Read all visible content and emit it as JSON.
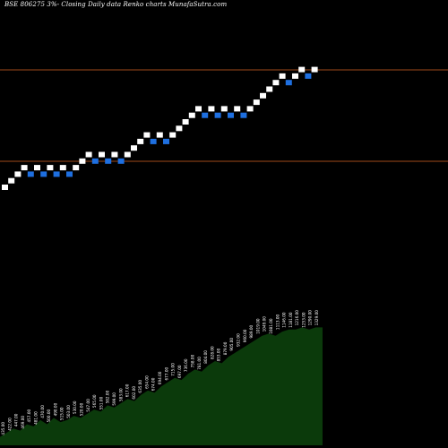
{
  "header": {
    "title": "BSE 806275 3%- Closing Daily data Renko charts MunafaSutra.com"
  },
  "colors": {
    "background": "#000000",
    "up_brick": "#ffffff",
    "down_brick": "#1e6fe0",
    "reference_line": "#a04a1a",
    "volume_area": "#0b3a0b",
    "volume_label": "#ffffff"
  },
  "chart_data": {
    "type": "renko",
    "title": "BSE 806275 3%- Closing Daily data Renko charts MunafaSutra.com",
    "reference_levels": [
      "upper",
      "lower"
    ],
    "bricks": [
      {
        "dir": "up",
        "level": 0
      },
      {
        "dir": "up",
        "level": 1
      },
      {
        "dir": "up",
        "level": 2
      },
      {
        "dir": "up",
        "level": 3
      },
      {
        "dir": "down",
        "level": 2
      },
      {
        "dir": "up",
        "level": 3
      },
      {
        "dir": "down",
        "level": 2
      },
      {
        "dir": "up",
        "level": 3
      },
      {
        "dir": "down",
        "level": 2
      },
      {
        "dir": "up",
        "level": 3
      },
      {
        "dir": "down",
        "level": 2
      },
      {
        "dir": "up",
        "level": 3
      },
      {
        "dir": "up",
        "level": 4
      },
      {
        "dir": "up",
        "level": 5
      },
      {
        "dir": "down",
        "level": 4
      },
      {
        "dir": "up",
        "level": 5
      },
      {
        "dir": "down",
        "level": 4
      },
      {
        "dir": "up",
        "level": 5
      },
      {
        "dir": "down",
        "level": 4
      },
      {
        "dir": "up",
        "level": 5
      },
      {
        "dir": "up",
        "level": 6
      },
      {
        "dir": "up",
        "level": 7
      },
      {
        "dir": "up",
        "level": 8
      },
      {
        "dir": "down",
        "level": 7
      },
      {
        "dir": "up",
        "level": 8
      },
      {
        "dir": "down",
        "level": 7
      },
      {
        "dir": "up",
        "level": 8
      },
      {
        "dir": "up",
        "level": 9
      },
      {
        "dir": "up",
        "level": 10
      },
      {
        "dir": "up",
        "level": 11
      },
      {
        "dir": "up",
        "level": 12
      },
      {
        "dir": "down",
        "level": 11
      },
      {
        "dir": "up",
        "level": 12
      },
      {
        "dir": "down",
        "level": 11
      },
      {
        "dir": "up",
        "level": 12
      },
      {
        "dir": "down",
        "level": 11
      },
      {
        "dir": "up",
        "level": 12
      },
      {
        "dir": "down",
        "level": 11
      },
      {
        "dir": "up",
        "level": 12
      },
      {
        "dir": "up",
        "level": 13
      },
      {
        "dir": "up",
        "level": 14
      },
      {
        "dir": "up",
        "level": 15
      },
      {
        "dir": "up",
        "level": 16
      },
      {
        "dir": "up",
        "level": 17
      },
      {
        "dir": "down",
        "level": 16
      },
      {
        "dir": "up",
        "level": 17
      },
      {
        "dir": "up",
        "level": 18
      },
      {
        "dir": "down",
        "level": 17
      },
      {
        "dir": "up",
        "level": 18
      }
    ],
    "volume_profile": [
      4,
      6,
      8,
      7,
      10,
      9,
      12,
      10,
      13,
      11,
      12,
      14,
      13,
      15,
      17,
      16,
      19,
      18,
      20,
      22,
      21,
      24,
      26,
      25,
      28,
      30,
      32,
      31,
      34,
      36,
      35,
      38,
      40,
      39,
      42,
      44,
      46,
      48,
      50,
      52,
      53,
      52,
      54,
      55,
      55,
      56,
      55,
      56,
      56
    ],
    "volume_labels": [
      "435.00",
      "422.00",
      "447.00",
      "469.00",
      "457.00",
      "481.00",
      "470.00",
      "500.00",
      "490.00",
      "515.00",
      "503.00",
      "530.00",
      "520.00",
      "547.00",
      "565.00",
      "551.00",
      "582.00",
      "599.00",
      "583.00",
      "617.00",
      "602.00",
      "635.00",
      "654.00",
      "674.00",
      "694.00",
      "677.00",
      "715.00",
      "697.00",
      "736.00",
      "758.00",
      "781.00",
      "804.00",
      "828.00",
      "853.00",
      "879.00",
      "905.00",
      "932.00",
      "960.00",
      "989.00",
      "1019.00",
      "1049.00",
      "1081.00",
      "1113.00",
      "1146.00",
      "1181.00",
      "1216.00",
      "1253.00",
      "1290.00",
      "1329.00"
    ]
  }
}
